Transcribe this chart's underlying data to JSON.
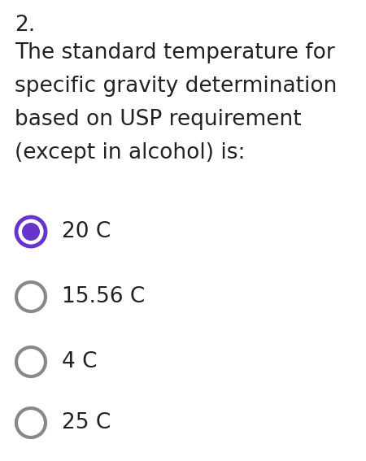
{
  "background_color": "#ffffff",
  "question_number": "2.",
  "question_text": "The standard temperature for\nspecific gravity determination\nbased on USP requirement\n(except in alcohol) is:",
  "options": [
    "20 C",
    "15.56 C",
    "4 C",
    "25 C"
  ],
  "selected_index": 0,
  "selected_color": "#6633cc",
  "unselected_color": "#888888",
  "text_color": "#222222",
  "font_size_question": 19,
  "font_size_number": 19,
  "font_size_option": 19,
  "fig_width": 4.5,
  "fig_height": 5.67,
  "dpi": 100
}
